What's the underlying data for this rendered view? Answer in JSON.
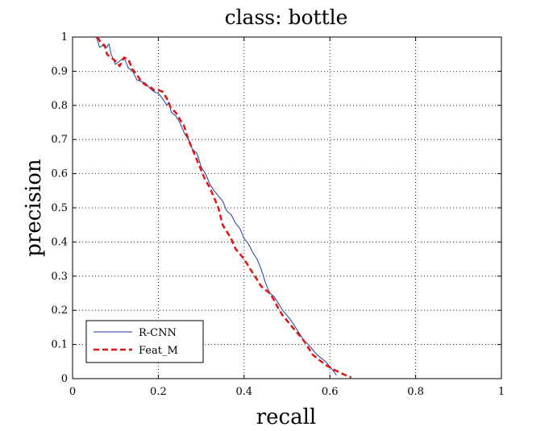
{
  "chart_data": {
    "type": "line",
    "title": "class: bottle",
    "xlabel": "recall",
    "ylabel": "precision",
    "xlim": [
      0,
      1
    ],
    "ylim": [
      0,
      1
    ],
    "xticks": [
      0,
      0.2,
      0.4,
      0.6,
      0.8,
      1
    ],
    "xtick_labels": [
      "0",
      "0.2",
      "0.4",
      "0.6",
      "0.8",
      "1"
    ],
    "yticks": [
      0,
      0.1,
      0.2,
      0.3,
      0.4,
      0.5,
      0.6,
      0.7,
      0.8,
      0.9,
      1
    ],
    "ytick_labels": [
      "0",
      "0.1",
      "0.2",
      "0.3",
      "0.4",
      "0.5",
      "0.6",
      "0.7",
      "0.8",
      "0.9",
      "1"
    ],
    "grid": true,
    "legend_position": "bottom-left",
    "series": [
      {
        "name": "R-CNN",
        "color": "#1f3ea8",
        "style": "solid",
        "x": [
          0.055,
          0.058,
          0.063,
          0.07,
          0.08,
          0.085,
          0.09,
          0.1,
          0.11,
          0.12,
          0.13,
          0.14,
          0.15,
          0.16,
          0.17,
          0.18,
          0.19,
          0.2,
          0.21,
          0.22,
          0.225,
          0.23,
          0.24,
          0.25,
          0.26,
          0.27,
          0.28,
          0.29,
          0.3,
          0.31,
          0.32,
          0.33,
          0.34,
          0.35,
          0.36,
          0.37,
          0.38,
          0.39,
          0.4,
          0.41,
          0.42,
          0.43,
          0.44,
          0.45,
          0.46,
          0.47,
          0.48,
          0.49,
          0.5,
          0.51,
          0.52,
          0.53,
          0.54,
          0.55,
          0.56,
          0.57,
          0.58,
          0.59,
          0.6,
          0.61,
          0.615
        ],
        "y": [
          1.0,
          0.99,
          0.97,
          0.975,
          0.97,
          0.98,
          0.95,
          0.92,
          0.93,
          0.94,
          0.91,
          0.9,
          0.875,
          0.87,
          0.865,
          0.85,
          0.84,
          0.835,
          0.82,
          0.8,
          0.81,
          0.78,
          0.77,
          0.75,
          0.72,
          0.7,
          0.67,
          0.66,
          0.62,
          0.6,
          0.57,
          0.55,
          0.535,
          0.52,
          0.49,
          0.48,
          0.455,
          0.44,
          0.41,
          0.395,
          0.37,
          0.35,
          0.32,
          0.28,
          0.25,
          0.24,
          0.22,
          0.2,
          0.185,
          0.17,
          0.15,
          0.13,
          0.11,
          0.1,
          0.085,
          0.07,
          0.06,
          0.05,
          0.035,
          0.02,
          0.01
        ]
      },
      {
        "name": "Feat_M",
        "color": "#e3140f",
        "style": "dashed",
        "x": [
          0.058,
          0.065,
          0.075,
          0.08,
          0.09,
          0.1,
          0.11,
          0.12,
          0.13,
          0.14,
          0.15,
          0.16,
          0.17,
          0.18,
          0.19,
          0.2,
          0.21,
          0.22,
          0.23,
          0.24,
          0.25,
          0.26,
          0.27,
          0.28,
          0.29,
          0.3,
          0.31,
          0.32,
          0.33,
          0.34,
          0.35,
          0.36,
          0.37,
          0.38,
          0.39,
          0.4,
          0.41,
          0.42,
          0.43,
          0.44,
          0.45,
          0.46,
          0.47,
          0.48,
          0.49,
          0.5,
          0.51,
          0.52,
          0.53,
          0.54,
          0.55,
          0.56,
          0.57,
          0.58,
          0.59,
          0.6,
          0.61,
          0.62,
          0.63,
          0.64,
          0.65
        ],
        "y": [
          1.0,
          0.985,
          0.975,
          0.95,
          0.94,
          0.93,
          0.915,
          0.94,
          0.935,
          0.905,
          0.89,
          0.87,
          0.86,
          0.855,
          0.845,
          0.845,
          0.84,
          0.82,
          0.79,
          0.78,
          0.76,
          0.74,
          0.7,
          0.67,
          0.64,
          0.61,
          0.58,
          0.56,
          0.53,
          0.5,
          0.45,
          0.43,
          0.41,
          0.38,
          0.365,
          0.35,
          0.33,
          0.31,
          0.29,
          0.27,
          0.26,
          0.25,
          0.23,
          0.205,
          0.185,
          0.17,
          0.155,
          0.14,
          0.125,
          0.11,
          0.09,
          0.07,
          0.06,
          0.05,
          0.04,
          0.033,
          0.026,
          0.02,
          0.014,
          0.008,
          0.004
        ]
      }
    ]
  }
}
